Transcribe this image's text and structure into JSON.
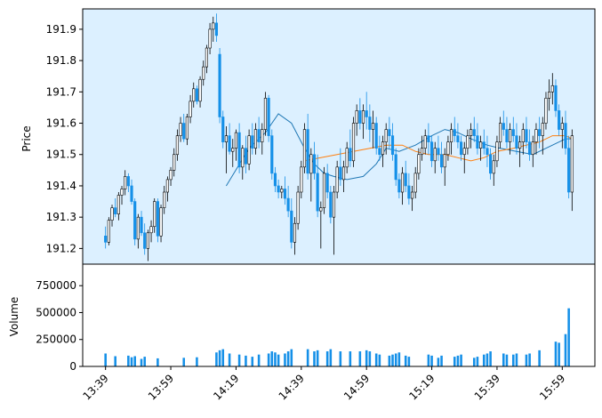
{
  "chart_data": {
    "type": "candlestick",
    "ylabel_price": "Price",
    "ylabel_volume": "Volume",
    "price_ylim": [
      191.15,
      191.965
    ],
    "volume_ylim": [
      0,
      950000
    ],
    "price_ticks": [
      "191.2",
      "191.3",
      "191.4",
      "191.5",
      "191.6",
      "191.7",
      "191.8",
      "191.9"
    ],
    "price_tick_values": [
      191.2,
      191.3,
      191.4,
      191.5,
      191.6,
      191.7,
      191.8,
      191.9
    ],
    "volume_ticks": [
      "0",
      "250000",
      "500000",
      "750000"
    ],
    "volume_tick_values": [
      0,
      250000,
      500000,
      750000
    ],
    "x_ticks": [
      "13:39",
      "13:59",
      "14:19",
      "14:39",
      "14:59",
      "15:19",
      "15:39",
      "15:59"
    ],
    "x_tick_minutes": [
      0,
      20,
      40,
      60,
      80,
      100,
      120,
      140
    ],
    "x_range_minutes": [
      -7,
      150
    ],
    "grid": false,
    "colors": {
      "panel_bg": "#dcf0ff",
      "down": "#1590e8",
      "up": "#ffffff",
      "edge": "#000000",
      "ma_short": "#1f77b4",
      "ma_long": "#ff7f0e"
    },
    "moving_averages": [
      {
        "points": [
          [
            37,
            191.4
          ],
          [
            44,
            191.52
          ],
          [
            49,
            191.57
          ],
          [
            53,
            191.63
          ],
          [
            57,
            191.6
          ],
          [
            61,
            191.52
          ],
          [
            64,
            191.47
          ],
          [
            67,
            191.44
          ],
          [
            70,
            191.43
          ],
          [
            74,
            191.42
          ],
          [
            79,
            191.43
          ],
          [
            83,
            191.47
          ],
          [
            86,
            191.52
          ],
          [
            90,
            191.51
          ],
          [
            95,
            191.53
          ],
          [
            100,
            191.56
          ],
          [
            104,
            191.58
          ],
          [
            108,
            191.57
          ],
          [
            112,
            191.55
          ],
          [
            117,
            191.53
          ],
          [
            121,
            191.52
          ],
          [
            126,
            191.51
          ],
          [
            131,
            191.5
          ],
          [
            137,
            191.53
          ],
          [
            141,
            191.55
          ],
          [
            143,
            191.55
          ]
        ]
      },
      {
        "points": [
          [
            61,
            191.48
          ],
          [
            66,
            191.49
          ],
          [
            71,
            191.5
          ],
          [
            76,
            191.51
          ],
          [
            81,
            191.52
          ],
          [
            86,
            191.53
          ],
          [
            91,
            191.53
          ],
          [
            95,
            191.51
          ],
          [
            99,
            191.5
          ],
          [
            104,
            191.5
          ],
          [
            108,
            191.49
          ],
          [
            112,
            191.48
          ],
          [
            116,
            191.49
          ],
          [
            120,
            191.51
          ],
          [
            125,
            191.52
          ],
          [
            129,
            191.53
          ],
          [
            133,
            191.54
          ],
          [
            137,
            191.56
          ],
          [
            141,
            191.56
          ],
          [
            143,
            191.55
          ]
        ]
      }
    ],
    "candles": [
      [
        0,
        191.24,
        191.27,
        191.2,
        191.22,
        120000
      ],
      [
        1,
        191.22,
        191.3,
        191.21,
        191.29,
        80000
      ],
      [
        2,
        191.29,
        191.34,
        191.27,
        191.33,
        60000
      ],
      [
        3,
        191.33,
        191.36,
        191.3,
        191.31,
        95000
      ],
      [
        4,
        191.31,
        191.38,
        191.29,
        191.37,
        70000
      ],
      [
        5,
        191.37,
        191.4,
        191.34,
        191.39,
        90000
      ],
      [
        6,
        191.39,
        191.45,
        191.37,
        191.43,
        110000
      ],
      [
        7,
        191.43,
        191.44,
        191.38,
        191.4,
        100000
      ],
      [
        8,
        191.4,
        191.42,
        191.34,
        191.35,
        85000
      ],
      [
        9,
        191.35,
        191.36,
        191.21,
        191.23,
        95000
      ],
      [
        10,
        191.23,
        191.31,
        191.2,
        191.3,
        60000
      ],
      [
        11,
        191.3,
        191.32,
        191.24,
        191.25,
        70000
      ],
      [
        12,
        191.25,
        191.28,
        191.18,
        191.2,
        90000
      ],
      [
        13,
        191.2,
        191.26,
        191.16,
        191.25,
        110000
      ],
      [
        14,
        191.25,
        191.29,
        191.22,
        191.27,
        80000
      ],
      [
        15,
        191.27,
        191.36,
        191.25,
        191.35,
        100000
      ],
      [
        16,
        191.35,
        191.36,
        191.22,
        191.24,
        75000
      ],
      [
        17,
        191.24,
        191.34,
        191.22,
        191.33,
        95000
      ],
      [
        18,
        191.33,
        191.4,
        191.31,
        191.38,
        130000
      ],
      [
        19,
        191.38,
        191.43,
        191.35,
        191.42,
        100000
      ],
      [
        20,
        191.42,
        191.46,
        191.4,
        191.45,
        85000
      ],
      [
        21,
        191.45,
        191.52,
        191.43,
        191.5,
        90000
      ],
      [
        22,
        191.5,
        191.58,
        191.48,
        191.56,
        115000
      ],
      [
        23,
        191.56,
        191.62,
        191.54,
        191.6,
        100000
      ],
      [
        24,
        191.6,
        191.63,
        191.54,
        191.55,
        80000
      ],
      [
        25,
        191.55,
        191.63,
        191.53,
        191.62,
        95000
      ],
      [
        26,
        191.62,
        191.69,
        191.6,
        191.67,
        110000
      ],
      [
        27,
        191.67,
        191.73,
        191.65,
        191.71,
        90000
      ],
      [
        28,
        191.71,
        191.72,
        191.66,
        191.67,
        85000
      ],
      [
        29,
        191.67,
        191.75,
        191.65,
        191.74,
        100000
      ],
      [
        30,
        191.74,
        191.8,
        191.72,
        191.78,
        95000
      ],
      [
        31,
        191.78,
        191.85,
        191.76,
        191.84,
        110000
      ],
      [
        32,
        191.84,
        191.92,
        191.82,
        191.9,
        120000
      ],
      [
        33,
        191.9,
        191.94,
        191.86,
        191.92,
        115000
      ],
      [
        34,
        191.92,
        191.95,
        191.86,
        191.88,
        130000
      ],
      [
        35,
        191.82,
        191.84,
        191.6,
        191.62,
        150000
      ],
      [
        36,
        191.62,
        191.64,
        191.52,
        191.54,
        160000
      ],
      [
        37,
        191.54,
        191.59,
        191.44,
        191.56,
        140000
      ],
      [
        38,
        191.56,
        191.6,
        191.5,
        191.51,
        120000
      ],
      [
        39,
        191.51,
        191.55,
        191.46,
        191.52,
        100000
      ],
      [
        40,
        191.52,
        191.58,
        191.48,
        191.57,
        90000
      ],
      [
        41,
        191.57,
        191.6,
        191.44,
        191.46,
        110000
      ],
      [
        42,
        191.46,
        191.53,
        191.42,
        191.52,
        80000
      ],
      [
        43,
        191.52,
        191.56,
        191.44,
        191.47,
        100000
      ],
      [
        44,
        191.47,
        191.58,
        191.45,
        191.56,
        95000
      ],
      [
        45,
        191.56,
        191.6,
        191.5,
        191.52,
        90000
      ],
      [
        46,
        191.52,
        191.6,
        191.5,
        191.58,
        85000
      ],
      [
        47,
        191.58,
        191.62,
        191.52,
        191.54,
        110000
      ],
      [
        48,
        191.54,
        191.6,
        191.5,
        191.58,
        100000
      ],
      [
        49,
        191.58,
        191.7,
        191.56,
        191.68,
        95000
      ],
      [
        50,
        191.68,
        191.69,
        191.54,
        191.56,
        120000
      ],
      [
        51,
        191.56,
        191.58,
        191.42,
        191.44,
        140000
      ],
      [
        52,
        191.44,
        191.46,
        191.38,
        191.4,
        130000
      ],
      [
        53,
        191.4,
        191.42,
        191.36,
        191.38,
        110000
      ],
      [
        54,
        191.38,
        191.4,
        191.36,
        191.39,
        90000
      ],
      [
        55,
        191.39,
        191.43,
        191.34,
        191.36,
        120000
      ],
      [
        56,
        191.36,
        191.4,
        191.3,
        191.32,
        140000
      ],
      [
        57,
        191.32,
        191.36,
        191.2,
        191.22,
        160000
      ],
      [
        58,
        191.22,
        191.3,
        191.18,
        191.28,
        150000
      ],
      [
        59,
        191.28,
        191.4,
        191.26,
        191.38,
        140000
      ],
      [
        60,
        191.38,
        191.48,
        191.36,
        191.46,
        120000
      ],
      [
        61,
        191.46,
        191.6,
        191.44,
        191.58,
        130000
      ],
      [
        62,
        191.58,
        191.63,
        191.42,
        191.44,
        160000
      ],
      [
        63,
        191.44,
        191.52,
        191.35,
        191.5,
        150000
      ],
      [
        64,
        191.5,
        191.54,
        191.42,
        191.44,
        140000
      ],
      [
        65,
        191.44,
        191.5,
        191.3,
        191.32,
        150000
      ],
      [
        66,
        191.32,
        191.35,
        191.2,
        191.33,
        130000
      ],
      [
        67,
        191.33,
        191.46,
        191.31,
        191.44,
        150000
      ],
      [
        68,
        191.44,
        191.47,
        191.36,
        191.38,
        140000
      ],
      [
        69,
        191.38,
        191.4,
        191.28,
        191.3,
        160000
      ],
      [
        70,
        191.3,
        191.4,
        191.18,
        191.38,
        170000
      ],
      [
        71,
        191.38,
        191.48,
        191.36,
        191.46,
        150000
      ],
      [
        72,
        191.46,
        191.52,
        191.4,
        191.42,
        140000
      ],
      [
        73,
        191.42,
        191.48,
        191.38,
        191.46,
        130000
      ],
      [
        74,
        191.46,
        191.54,
        191.44,
        191.52,
        150000
      ],
      [
        75,
        191.52,
        191.58,
        191.46,
        191.48,
        140000
      ],
      [
        76,
        191.48,
        191.62,
        191.46,
        191.6,
        160000
      ],
      [
        77,
        191.6,
        191.66,
        191.56,
        191.64,
        150000
      ],
      [
        78,
        191.64,
        191.68,
        191.58,
        191.6,
        140000
      ],
      [
        79,
        191.6,
        191.66,
        191.55,
        191.64,
        130000
      ],
      [
        80,
        191.64,
        191.7,
        191.58,
        191.62,
        150000
      ],
      [
        81,
        191.62,
        191.66,
        191.54,
        191.58,
        140000
      ],
      [
        82,
        191.58,
        191.64,
        191.52,
        191.6,
        130000
      ],
      [
        83,
        191.6,
        191.62,
        191.5,
        191.52,
        120000
      ],
      [
        84,
        191.52,
        191.56,
        191.48,
        191.5,
        110000
      ],
      [
        85,
        191.5,
        191.56,
        191.46,
        191.54,
        100000
      ],
      [
        86,
        191.54,
        191.6,
        191.5,
        191.58,
        90000
      ],
      [
        87,
        191.58,
        191.62,
        191.52,
        191.56,
        100000
      ],
      [
        88,
        191.56,
        191.6,
        191.48,
        191.5,
        110000
      ],
      [
        89,
        191.5,
        191.52,
        191.4,
        191.42,
        120000
      ],
      [
        90,
        191.42,
        191.44,
        191.36,
        191.38,
        130000
      ],
      [
        91,
        191.38,
        191.46,
        191.34,
        191.44,
        110000
      ],
      [
        92,
        191.44,
        191.48,
        191.38,
        191.4,
        100000
      ],
      [
        93,
        191.4,
        191.44,
        191.34,
        191.36,
        90000
      ],
      [
        94,
        191.36,
        191.4,
        191.32,
        191.38,
        100000
      ],
      [
        95,
        191.38,
        191.46,
        191.36,
        191.44,
        110000
      ],
      [
        96,
        191.44,
        191.52,
        191.42,
        191.5,
        100000
      ],
      [
        97,
        191.5,
        191.56,
        191.48,
        191.52,
        90000
      ],
      [
        98,
        191.52,
        191.58,
        191.5,
        191.56,
        100000
      ],
      [
        99,
        191.56,
        191.6,
        191.5,
        191.54,
        110000
      ],
      [
        100,
        191.54,
        191.56,
        191.46,
        191.48,
        100000
      ],
      [
        101,
        191.48,
        191.54,
        191.44,
        191.52,
        90000
      ],
      [
        102,
        191.52,
        191.56,
        191.48,
        191.5,
        80000
      ],
      [
        103,
        191.5,
        191.54,
        191.44,
        191.46,
        100000
      ],
      [
        104,
        191.46,
        191.52,
        191.4,
        191.5,
        110000
      ],
      [
        105,
        191.5,
        191.56,
        191.48,
        191.54,
        90000
      ],
      [
        106,
        191.54,
        191.6,
        191.5,
        191.58,
        80000
      ],
      [
        107,
        191.58,
        191.62,
        191.54,
        191.56,
        90000
      ],
      [
        108,
        191.56,
        191.6,
        191.52,
        191.54,
        100000
      ],
      [
        109,
        191.54,
        191.56,
        191.48,
        191.5,
        110000
      ],
      [
        110,
        191.5,
        191.54,
        191.44,
        191.52,
        120000
      ],
      [
        111,
        191.52,
        191.58,
        191.5,
        191.56,
        100000
      ],
      [
        112,
        191.56,
        191.6,
        191.52,
        191.58,
        90000
      ],
      [
        113,
        191.58,
        191.62,
        191.54,
        191.56,
        80000
      ],
      [
        114,
        191.56,
        191.6,
        191.5,
        191.52,
        90000
      ],
      [
        115,
        191.52,
        191.56,
        191.48,
        191.54,
        100000
      ],
      [
        116,
        191.54,
        191.58,
        191.5,
        191.52,
        110000
      ],
      [
        117,
        191.52,
        191.56,
        191.46,
        191.5,
        120000
      ],
      [
        118,
        191.5,
        191.52,
        191.42,
        191.44,
        140000
      ],
      [
        119,
        191.44,
        191.5,
        191.4,
        191.48,
        130000
      ],
      [
        120,
        191.48,
        191.56,
        191.46,
        191.54,
        120000
      ],
      [
        121,
        191.54,
        191.62,
        191.52,
        191.6,
        130000
      ],
      [
        122,
        191.6,
        191.64,
        191.56,
        191.58,
        120000
      ],
      [
        123,
        191.58,
        191.62,
        191.52,
        191.54,
        110000
      ],
      [
        124,
        191.54,
        191.6,
        191.5,
        191.58,
        100000
      ],
      [
        125,
        191.58,
        191.62,
        191.54,
        191.56,
        110000
      ],
      [
        126,
        191.56,
        191.6,
        191.5,
        191.52,
        120000
      ],
      [
        127,
        191.52,
        191.56,
        191.46,
        191.54,
        130000
      ],
      [
        128,
        191.54,
        191.6,
        191.5,
        191.58,
        120000
      ],
      [
        129,
        191.58,
        191.62,
        191.52,
        191.54,
        110000
      ],
      [
        130,
        191.54,
        191.58,
        191.48,
        191.5,
        120000
      ],
      [
        131,
        191.5,
        191.56,
        191.46,
        191.54,
        130000
      ],
      [
        132,
        191.54,
        191.6,
        191.5,
        191.58,
        140000
      ],
      [
        133,
        191.58,
        191.62,
        191.52,
        191.56,
        150000
      ],
      [
        134,
        191.56,
        191.62,
        191.5,
        191.6,
        160000
      ],
      [
        135,
        191.6,
        191.7,
        191.58,
        191.68,
        200000
      ],
      [
        136,
        191.68,
        191.74,
        191.64,
        191.7,
        220000
      ],
      [
        137,
        191.7,
        191.76,
        191.66,
        191.72,
        210000
      ],
      [
        138,
        191.72,
        191.74,
        191.62,
        191.64,
        230000
      ],
      [
        139,
        191.64,
        191.66,
        191.56,
        191.58,
        220000
      ],
      [
        140,
        191.58,
        191.62,
        191.52,
        191.6,
        250000
      ],
      [
        141,
        191.6,
        191.64,
        191.5,
        191.52,
        300000
      ],
      [
        142,
        191.52,
        191.56,
        191.36,
        191.38,
        540000
      ],
      [
        143,
        191.38,
        191.58,
        191.32,
        191.56,
        880000
      ]
    ]
  }
}
